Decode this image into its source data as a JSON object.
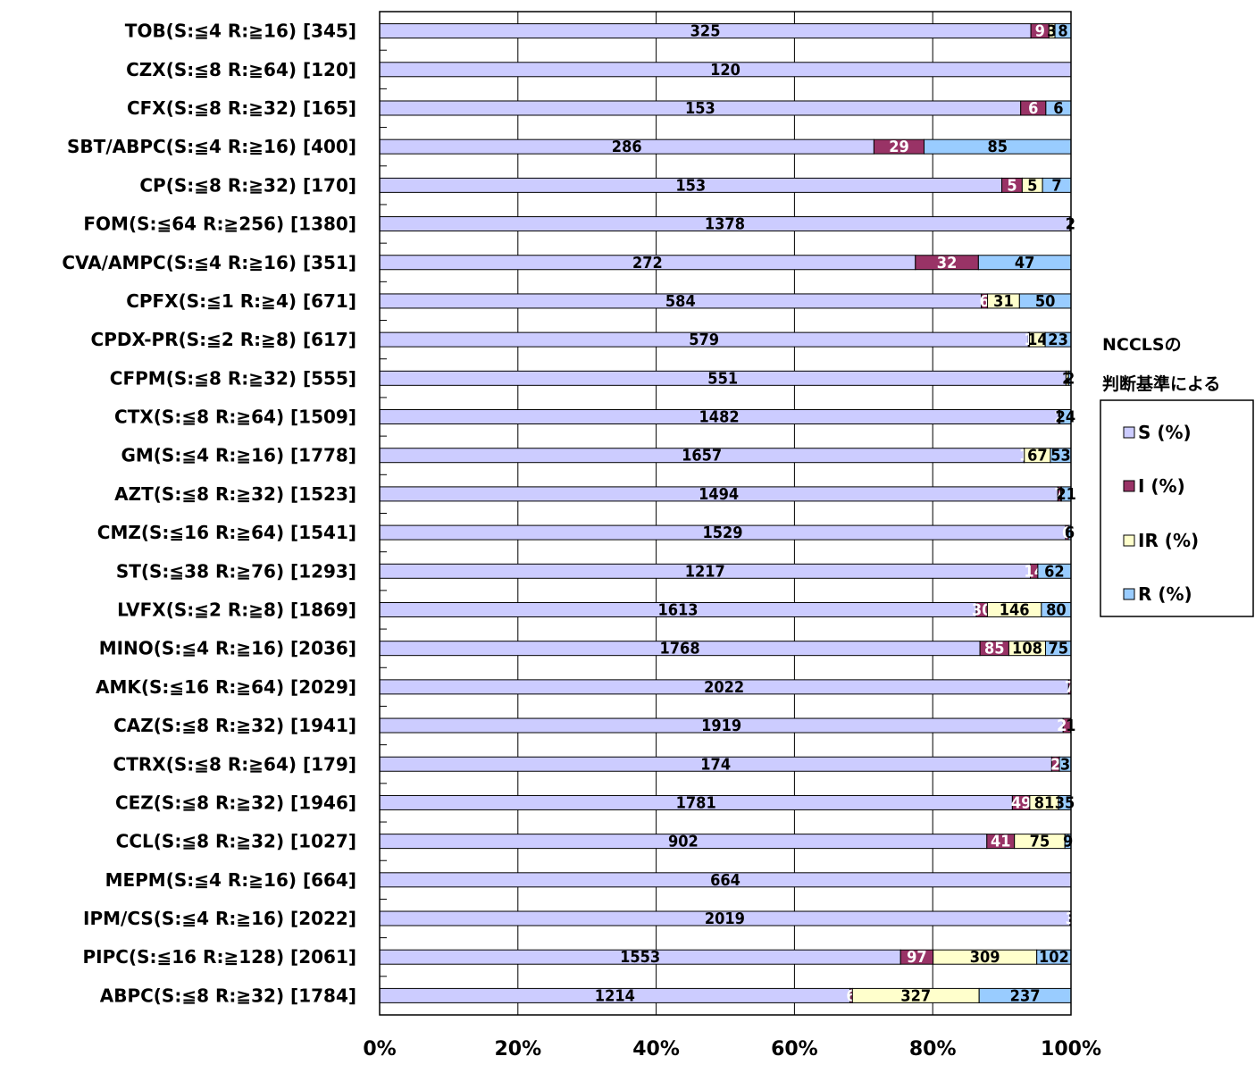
{
  "colors": {
    "S": "#ccccff",
    "I": "#993366",
    "IR": "#ffffcc",
    "R": "#99ccff",
    "label_dark": "#000000",
    "label_light": "#ffffff"
  },
  "legend": {
    "title_line1": "NCCLSの",
    "title_line2": "判断基準による",
    "items": [
      "S (%)",
      "I (%)",
      "IR (%)",
      "R (%)"
    ]
  },
  "chart_data": {
    "type": "bar",
    "orientation": "horizontal",
    "stacked": "percent",
    "categories": [
      "TOB(S:≦4 R:≧16) [345]",
      "CZX(S:≦8 R:≧64) [120]",
      "CFX(S:≦8 R:≧32) [165]",
      "SBT/ABPC(S:≦4 R:≧16) [400]",
      "CP(S:≦8 R:≧32) [170]",
      "FOM(S:≦64 R:≧256) [1380]",
      "CVA/AMPC(S:≦4 R:≧16) [351]",
      "CPFX(S:≦1 R:≧4) [671]",
      "CPDX-PR(S:≦2 R:≧8) [617]",
      "CFPM(S:≦8 R:≧32) [555]",
      "CTX(S:≦8 R:≧64) [1509]",
      "GM(S:≦4 R:≧16) [1778]",
      "AZT(S:≦8 R:≧32) [1523]",
      "CMZ(S:≦16 R:≧64) [1541]",
      "ST(S:≦38 R:≧76) [1293]",
      "LVFX(S:≦2 R:≧8) [1869]",
      "MINO(S:≦4 R:≧16) [2036]",
      "AMK(S:≦16 R:≧64) [2029]",
      "CAZ(S:≦8 R:≧32) [1941]",
      "CTRX(S:≦8 R:≧64) [179]",
      "CEZ(S:≦8 R:≧32) [1946]",
      "CCL(S:≦8 R:≧32) [1027]",
      "MEPM(S:≦4 R:≧16) [664]",
      "IPM/CS(S:≦4 R:≧16) [2022]",
      "PIPC(S:≦16 R:≧128) [2061]",
      "ABPC(S:≦8 R:≧32) [1784]"
    ],
    "series": [
      {
        "name": "S (%)",
        "values": [
          325,
          120,
          153,
          286,
          153,
          1378,
          272,
          584,
          579,
          551,
          1482,
          1657,
          1494,
          1529,
          1217,
          1613,
          1768,
          2022,
          1919,
          174,
          1781,
          902,
          664,
          2019,
          1553,
          1214
        ]
      },
      {
        "name": "I (%)",
        "values": [
          9,
          0,
          6,
          29,
          5,
          0,
          32,
          6,
          1,
          0,
          2,
          1,
          7,
          6,
          14,
          30,
          85,
          7,
          21,
          2,
          49,
          41,
          0,
          3,
          97,
          6
        ]
      },
      {
        "name": "IR (%)",
        "values": [
          3,
          0,
          0,
          0,
          5,
          0,
          0,
          31,
          14,
          2,
          1,
          67,
          1,
          0,
          0,
          146,
          108,
          0,
          0,
          0,
          81,
          75,
          0,
          0,
          309,
          327
        ]
      },
      {
        "name": "R (%)",
        "values": [
          8,
          0,
          6,
          85,
          7,
          2,
          47,
          50,
          23,
          2,
          24,
          53,
          21,
          6,
          62,
          80,
          75,
          0,
          1,
          3,
          35,
          9,
          0,
          0,
          102,
          237
        ]
      }
    ],
    "xlim": [
      0,
      100
    ],
    "x_ticks": [
      "0%",
      "20%",
      "40%",
      "60%",
      "80%",
      "100%"
    ],
    "grid": true,
    "legend_position": "right"
  }
}
